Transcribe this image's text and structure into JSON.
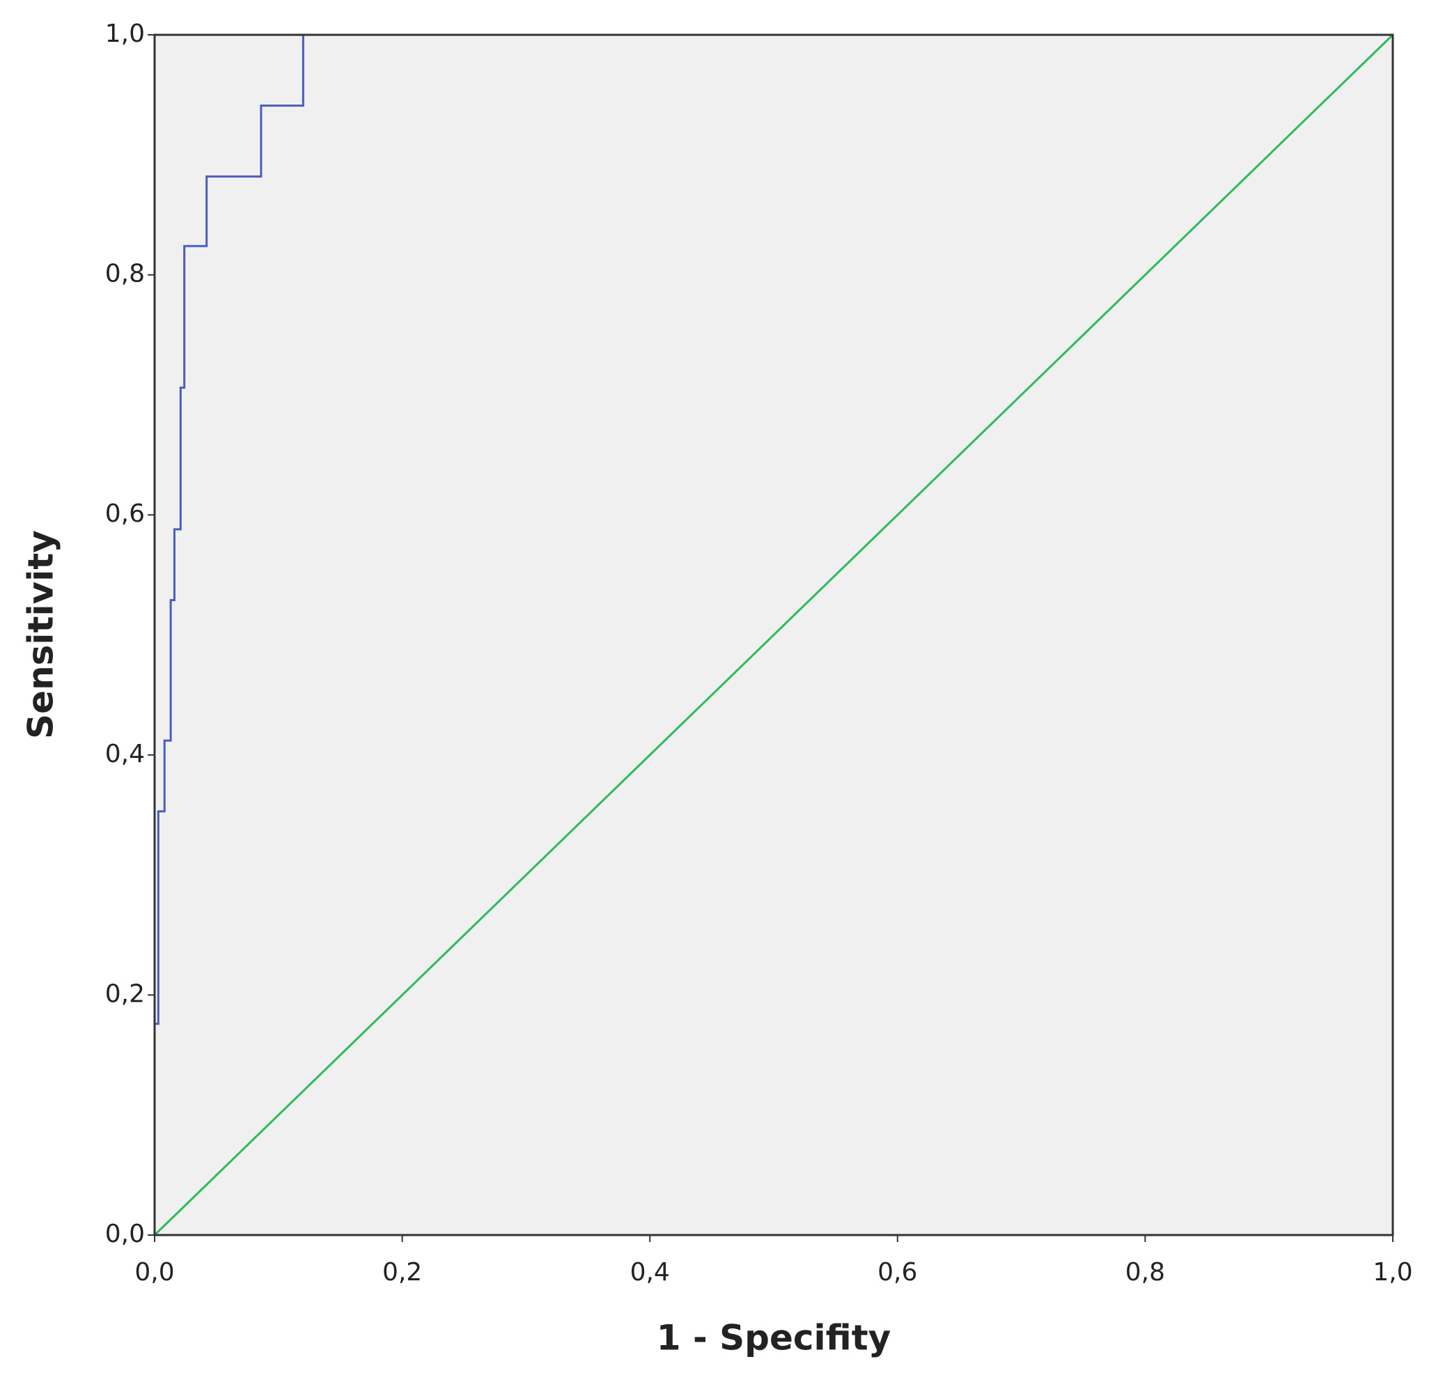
{
  "chart_data": {
    "type": "line",
    "x_label": "1 - Specifity",
    "y_label": "Sensitivity",
    "series": [
      {
        "color": "#4a5cc0",
        "x": [
          0,
          0,
          0.003,
          0.003,
          0.008,
          0.008,
          0.013,
          0.013,
          0.016,
          0.016,
          0.021,
          0.021,
          0.024,
          0.024,
          0.042,
          0.042,
          0.086,
          0.086,
          0.12,
          0.12,
          1
        ],
        "values": [
          0,
          0.176,
          0.176,
          0.353,
          0.353,
          0.412,
          0.412,
          0.529,
          0.529,
          0.588,
          0.588,
          0.706,
          0.706,
          0.824,
          0.824,
          0.882,
          0.882,
          0.941,
          0.941,
          1,
          1
        ]
      },
      {
        "color": "#2dbb5a",
        "x": [
          0,
          1
        ],
        "values": [
          0,
          1
        ]
      }
    ],
    "xlim": [
      0,
      1
    ],
    "ylim": [
      0,
      1
    ],
    "xticks": [
      {
        "value": 0,
        "label": "0,0"
      },
      {
        "value": 0.2,
        "label": "0,2"
      },
      {
        "value": 0.4,
        "label": "0,4"
      },
      {
        "value": 0.6,
        "label": "0,6"
      },
      {
        "value": 0.8,
        "label": "0,8"
      },
      {
        "value": 1,
        "label": "1,0"
      }
    ],
    "yticks": [
      {
        "value": 0,
        "label": "0,0"
      },
      {
        "value": 0.2,
        "label": "0,2"
      },
      {
        "value": 0.4,
        "label": "0,4"
      },
      {
        "value": 0.6,
        "label": "0,6"
      },
      {
        "value": 0.8,
        "label": "0,8"
      },
      {
        "value": 1,
        "label": "1,0"
      }
    ],
    "background": "#f0f0f0"
  }
}
